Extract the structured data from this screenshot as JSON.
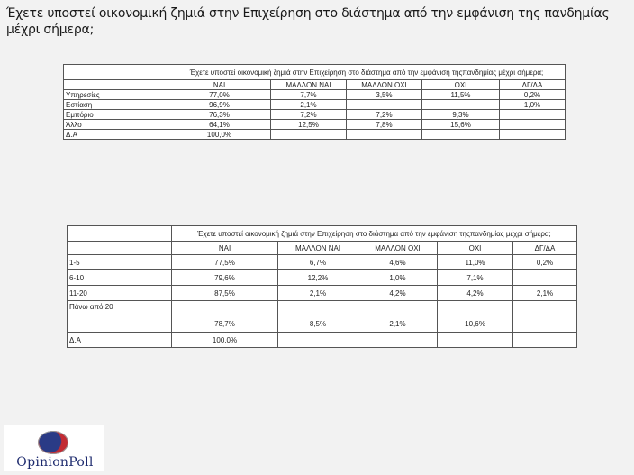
{
  "title": "Έχετε υποστεί οικονομική ζημιά στην Επιχείρηση στο διάστημα από την εμφάνιση της πανδημίας μέχρι σήμερα;",
  "table1": {
    "header": "Έχετε υποστεί οικονομική ζημιά στην Επιχείρηση στο διάστημα από την εμφάνιση τηςπανδημίας μέχρι σήμερα;",
    "columns": [
      "ΝΑΙ",
      "ΜΑΛΛΟΝ ΝΑΙ",
      "ΜΑΛΛΟΝ ΟΧΙ",
      "ΟΧΙ",
      "ΔΓ/ΔΑ"
    ],
    "rows": [
      {
        "label": "Υπηρεσίες",
        "values": [
          "77,0%",
          "7,7%",
          "3,5%",
          "11,5%",
          "0,2%"
        ]
      },
      {
        "label": "Εστίαση",
        "values": [
          "96,9%",
          "2,1%",
          "",
          "",
          "1,0%"
        ]
      },
      {
        "label": "Εμπόριο",
        "values": [
          "76,3%",
          "7,2%",
          "7,2%",
          "9,3%",
          ""
        ]
      },
      {
        "label": "Άλλο",
        "values": [
          "64,1%",
          "12,5%",
          "7,8%",
          "15,6%",
          ""
        ]
      },
      {
        "label": "Δ.Α",
        "values": [
          "100,0%",
          "",
          "",
          "",
          ""
        ]
      }
    ]
  },
  "table2": {
    "header": "Έχετε υποστεί οικονομική ζημιά στην Επιχείρηση στο διάστημα από την εμφάνιση τηςπανδημίας μέχρι σήμερα;",
    "columns": [
      "ΝΑΙ",
      "ΜΑΛΛΟΝ ΝΑΙ",
      "ΜΑΛΛΟΝ ΟΧΙ",
      "ΟΧΙ",
      "ΔΓ/ΔΑ"
    ],
    "rows": [
      {
        "label": "1-5",
        "values": [
          "77,5%",
          "6,7%",
          "4,6%",
          "11,0%",
          "0,2%"
        ]
      },
      {
        "label": "6-10",
        "values": [
          "79,6%",
          "12,2%",
          "1,0%",
          "7,1%",
          ""
        ]
      },
      {
        "label": "11-20",
        "values": [
          "87,5%",
          "2,1%",
          "4,2%",
          "4,2%",
          "2,1%"
        ]
      },
      {
        "label": "Πάνω από 20",
        "values": [
          "78,7%",
          "8,5%",
          "2,1%",
          "10,6%",
          ""
        ]
      },
      {
        "label": "Δ.Α",
        "values": [
          "100,0%",
          "",
          "",
          "",
          ""
        ]
      }
    ]
  },
  "logo": {
    "text": "OpinionPoll",
    "colors": {
      "blue": "#2a3b86",
      "red": "#c22b33"
    }
  }
}
